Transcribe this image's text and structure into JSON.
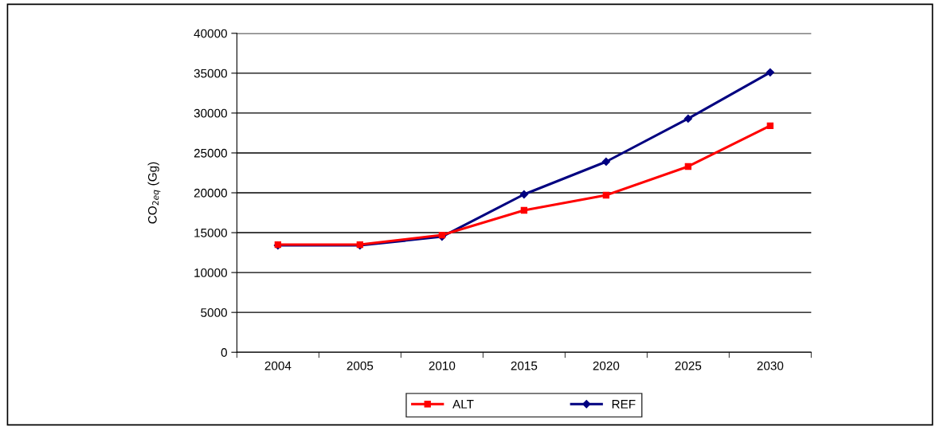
{
  "chart_data": {
    "type": "line",
    "ylabel": "CO$_{2eq}$ (Gg)",
    "categories": [
      "2004",
      "2005",
      "2010",
      "2015",
      "2020",
      "2025",
      "2030"
    ],
    "series": [
      {
        "name": "ALT",
        "color": "#ff0000",
        "marker": "square",
        "values": [
          13500,
          13500,
          14700,
          17800,
          19700,
          23300,
          28400
        ]
      },
      {
        "name": "REF",
        "color": "#000080",
        "marker": "diamond",
        "values": [
          13400,
          13400,
          14500,
          19800,
          23900,
          29300,
          35100
        ]
      }
    ],
    "ylim": [
      0,
      40000
    ],
    "yticks": [
      0,
      5000,
      10000,
      15000,
      20000,
      25000,
      30000,
      35000,
      40000
    ],
    "grid": "y",
    "legend": "bottom",
    "line_style": "solid"
  }
}
